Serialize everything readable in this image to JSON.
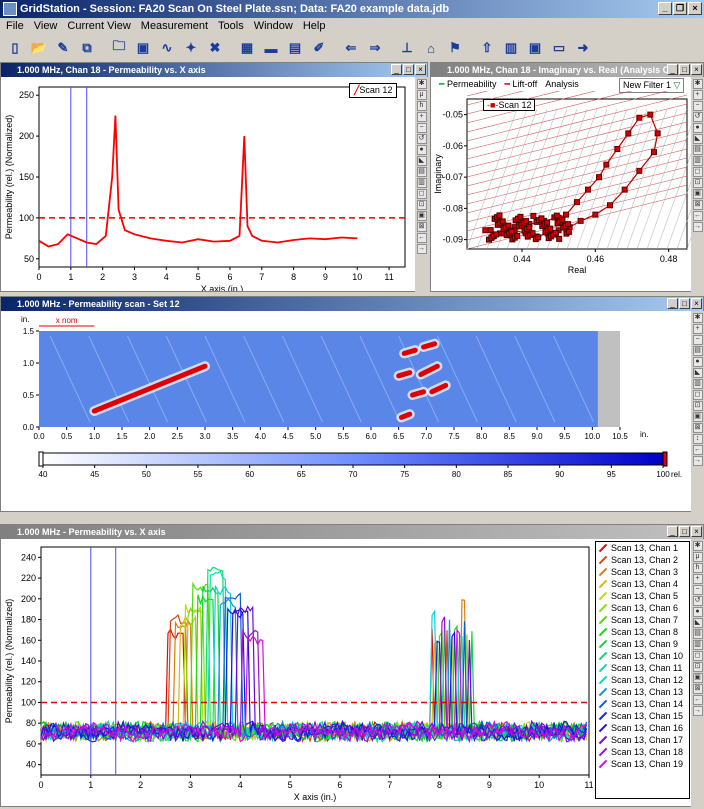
{
  "app": {
    "title": "GridStation - Session: FA20 Scan On Steel Plate.ssn; Data: FA20 example data.jdb",
    "menu": [
      "File",
      "View",
      "Current View",
      "Measurement",
      "Tools",
      "Window",
      "Help"
    ]
  },
  "panel1": {
    "title": "1.000 MHz, Chan 18 - Permeability vs. X axis",
    "legend": "Scan 12",
    "xlabel": "X axis (in.)",
    "ylabel": "Permeability (rel.) (Normalized)",
    "xticks": [
      "0",
      "1",
      "2",
      "3",
      "4",
      "5",
      "6",
      "7",
      "8",
      "9",
      "10",
      "11"
    ],
    "yticks": [
      "50",
      "100",
      "150",
      "200",
      "250"
    ]
  },
  "panel2": {
    "title": "1.000 MHz, Chan 18 - Imaginary vs. Real (Analysis Ci",
    "legend_top": [
      "Permeability",
      "Lift-off",
      "Analysis"
    ],
    "filter": "New Filter 1",
    "legend": "Scan 12",
    "xlabel": "Real",
    "ylabel": "Imaginary",
    "xticks": [
      "0.44",
      "0.46",
      "0.48"
    ],
    "yticks": [
      "-0.05",
      "-0.06",
      "-0.07",
      "-0.08",
      "-0.09"
    ]
  },
  "panel3": {
    "title": "1.000 MHz - Permeability scan - Set 12",
    "unit_top": "in.",
    "xnom": "x nom",
    "yticks": [
      "1.5",
      "1.0",
      "0.5",
      "0.0"
    ],
    "xticks": [
      "0.0",
      "0.5",
      "1.0",
      "1.5",
      "2.0",
      "2.5",
      "3.0",
      "3.5",
      "4.0",
      "4.5",
      "5.0",
      "5.5",
      "6.0",
      "6.5",
      "7.0",
      "7.5",
      "8.0",
      "8.5",
      "9.0",
      "9.5",
      "10.0",
      "10.5"
    ],
    "xunit": "in.",
    "colorbar_ticks": [
      "40",
      "45",
      "50",
      "55",
      "60",
      "65",
      "70",
      "75",
      "80",
      "85",
      "90",
      "95",
      "100"
    ],
    "colorbar_unit": "rel."
  },
  "panel4": {
    "title": "1.000 MHz - Permeability vs. X axis",
    "xlabel": "X axis (in.)",
    "ylabel": "Permeability (rel.) (Normalized)",
    "xticks": [
      "0",
      "1",
      "2",
      "3",
      "4",
      "5",
      "6",
      "7",
      "8",
      "9",
      "10",
      "11"
    ],
    "yticks": [
      "40",
      "60",
      "80",
      "100",
      "120",
      "140",
      "160",
      "180",
      "200",
      "220",
      "240"
    ],
    "legend": [
      "Scan 13, Chan 1",
      "Scan 13, Chan 2",
      "Scan 13, Chan 3",
      "Scan 13, Chan 4",
      "Scan 13, Chan 5",
      "Scan 13, Chan 6",
      "Scan 13, Chan 7",
      "Scan 13, Chan 8",
      "Scan 13, Chan 9",
      "Scan 13, Chan 10",
      "Scan 13, Chan 11",
      "Scan 13, Chan 12",
      "Scan 13, Chan 13",
      "Scan 13, Chan 14",
      "Scan 13, Chan 15",
      "Scan 13, Chan 16",
      "Scan 13, Chan 17",
      "Scan 13, Chan 18",
      "Scan 13, Chan 19"
    ]
  },
  "chart_data": [
    {
      "type": "line",
      "title": "1.000 MHz, Chan 18 - Permeability vs. X axis",
      "xlabel": "X axis (in.)",
      "ylabel": "Permeability (rel.) (Normalized)",
      "xlim": [
        0,
        11.5
      ],
      "ylim": [
        40,
        260
      ],
      "threshold": 100,
      "cursors": [
        1.0,
        1.5
      ],
      "series": [
        {
          "name": "Scan 12",
          "x": [
            0,
            0.3,
            0.6,
            0.9,
            1.2,
            1.5,
            1.8,
            2.1,
            2.3,
            2.4,
            2.5,
            2.7,
            3.0,
            3.5,
            4.0,
            4.5,
            5.0,
            5.5,
            6.0,
            6.3,
            6.45,
            6.55,
            6.7,
            7.0,
            7.5,
            8.0,
            8.5,
            9.0,
            9.5,
            10.0
          ],
          "y": [
            72,
            65,
            68,
            80,
            75,
            70,
            68,
            78,
            150,
            225,
            110,
            85,
            80,
            75,
            72,
            70,
            74,
            71,
            72,
            78,
            200,
            90,
            78,
            72,
            70,
            73,
            75,
            74,
            76,
            75
          ]
        }
      ]
    },
    {
      "type": "scatter",
      "title": "1.000 MHz, Chan 18 - Imaginary vs. Real",
      "xlabel": "Real",
      "ylabel": "Imaginary",
      "xlim": [
        0.425,
        0.485
      ],
      "ylim": [
        -0.093,
        -0.045
      ],
      "series": [
        {
          "name": "Scan 12",
          "x": [
            0.43,
            0.434,
            0.438,
            0.442,
            0.446,
            0.45,
            0.452,
            0.455,
            0.458,
            0.461,
            0.463,
            0.466,
            0.469,
            0.472,
            0.475,
            0.477,
            0.476,
            0.472,
            0.468,
            0.464,
            0.46,
            0.456,
            0.453,
            0.45,
            0.447,
            0.444,
            0.441,
            0.438,
            0.435,
            0.432
          ],
          "y": [
            -0.087,
            -0.088,
            -0.086,
            -0.085,
            -0.084,
            -0.083,
            -0.082,
            -0.078,
            -0.074,
            -0.07,
            -0.066,
            -0.061,
            -0.056,
            -0.051,
            -0.05,
            -0.056,
            -0.062,
            -0.068,
            -0.074,
            -0.079,
            -0.082,
            -0.084,
            -0.086,
            -0.087,
            -0.088,
            -0.089,
            -0.088,
            -0.087,
            -0.088,
            -0.089
          ]
        }
      ]
    },
    {
      "type": "heatmap",
      "title": "1.000 MHz - Permeability scan - Set 12",
      "xlim": [
        0,
        10.5
      ],
      "ylim": [
        0,
        1.5
      ],
      "colorbar": [
        40,
        100
      ],
      "indications": [
        {
          "x": [
            1.0,
            3.0
          ],
          "y": [
            0.25,
            0.95
          ],
          "value": 100
        },
        {
          "x": [
            6.6,
            6.8
          ],
          "y": [
            1.15,
            1.2
          ],
          "value": 100
        },
        {
          "x": [
            6.95,
            7.15
          ],
          "y": [
            1.25,
            1.3
          ],
          "value": 100
        },
        {
          "x": [
            6.5,
            6.7
          ],
          "y": [
            0.8,
            0.85
          ],
          "value": 100
        },
        {
          "x": [
            6.9,
            7.2
          ],
          "y": [
            0.82,
            0.95
          ],
          "value": 100
        },
        {
          "x": [
            7.1,
            7.35
          ],
          "y": [
            0.55,
            0.65
          ],
          "value": 100
        },
        {
          "x": [
            6.75,
            6.95
          ],
          "y": [
            0.5,
            0.55
          ],
          "value": 100
        },
        {
          "x": [
            6.55,
            6.7
          ],
          "y": [
            0.15,
            0.2
          ],
          "value": 100
        }
      ]
    },
    {
      "type": "line",
      "title": "1.000 MHz - Permeability vs. X axis",
      "xlabel": "X axis (in.)",
      "ylabel": "Permeability (rel.) (Normalized)",
      "xlim": [
        0,
        11
      ],
      "ylim": [
        30,
        250
      ],
      "threshold": 100,
      "cursors": [
        1.0,
        1.5
      ],
      "peak_region_1": {
        "x": [
          2.5,
          4.5
        ],
        "max": 235
      },
      "peak_region_2": {
        "x": [
          7.8,
          8.7
        ],
        "max": 200
      },
      "baseline": 72,
      "channels": 19
    }
  ],
  "colors": {
    "accent": "#0a246a",
    "line_red": "#ff0000",
    "cursor_blue": "#4a4aff",
    "threshold": "#e00000"
  }
}
